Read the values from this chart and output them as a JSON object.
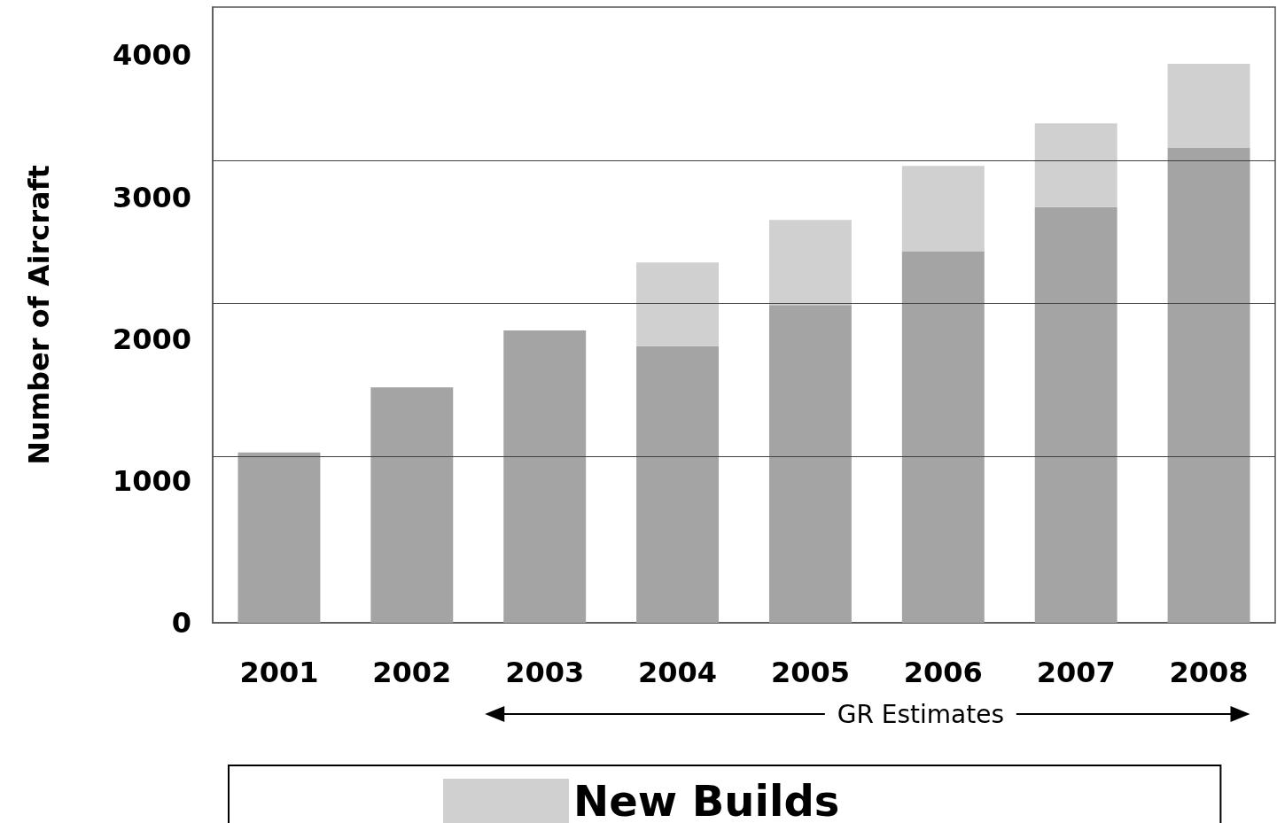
{
  "chart_data": {
    "type": "bar",
    "stacked": true,
    "ylabel": "Number of Aircraft",
    "categories": [
      "2001",
      "2002",
      "2003",
      "2004",
      "2005",
      "2006",
      "2007",
      "2008"
    ],
    "series": [
      {
        "color": "#a4a4a4",
        "values": [
          1200,
          1660,
          2060,
          1950,
          2240,
          2620,
          2930,
          3350
        ]
      },
      {
        "name": "New Builds",
        "color": "#d0d0d0",
        "values": [
          0,
          0,
          0,
          590,
          600,
          600,
          590,
          590
        ]
      }
    ],
    "ylim": [
      0,
      4340
    ],
    "yticks": [
      0,
      1000,
      2000,
      3000,
      4000
    ],
    "grid": false,
    "ref_lines": [
      {
        "axis": "y",
        "value": 1175,
        "color": "#404040"
      },
      {
        "axis": "y",
        "value": 2250,
        "color": "#404040"
      },
      {
        "axis": "y",
        "value": 3256,
        "color": "#404040"
      }
    ],
    "annotations": [
      "GR Estimates"
    ],
    "legend": "bottom"
  }
}
